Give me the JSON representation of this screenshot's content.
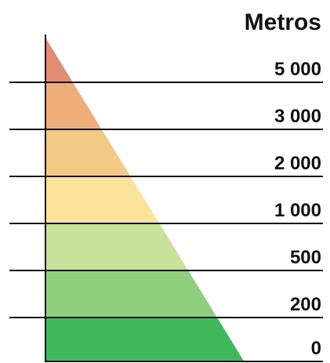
{
  "legend": {
    "title": "Metros",
    "levels": [
      {
        "label": "5 000",
        "color": "#e08d72"
      },
      {
        "label": "3 000",
        "color": "#eeae7b"
      },
      {
        "label": "2 000",
        "color": "#f3c986"
      },
      {
        "label": "1 000",
        "color": "#fce39c"
      },
      {
        "label": "500",
        "color": "#c9e29b"
      },
      {
        "label": "200",
        "color": "#8fd07f"
      },
      {
        "label": "0",
        "color": "#40b95d"
      }
    ]
  }
}
